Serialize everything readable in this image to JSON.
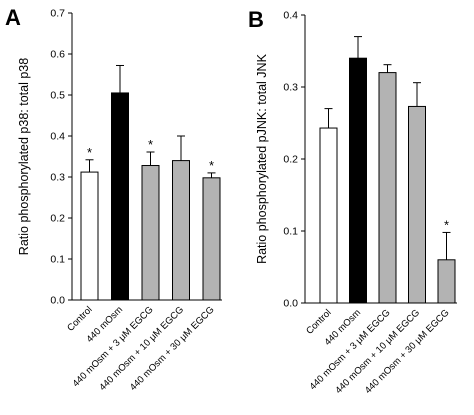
{
  "chart_data": [
    {
      "type": "bar",
      "panel_label": "A",
      "ylabel": "Ratio phosphorylated p38: total p38",
      "ylim": [
        0,
        0.7
      ],
      "yticks": [
        "0.0",
        "0.1",
        "0.2",
        "0.3",
        "0.4",
        "0.5",
        "0.6",
        "0.7"
      ],
      "categories": [
        "Control",
        "440 mOsm",
        "440 mOsm + 3 μM EGCG",
        "440 mOsm + 10 μM EGCG",
        "440 mOsm + 30 μM EGCG"
      ],
      "values": [
        0.312,
        0.505,
        0.328,
        0.34,
        0.298
      ],
      "errors": [
        0.03,
        0.067,
        0.033,
        0.06,
        0.012
      ],
      "significance": [
        "*",
        "",
        "*",
        "",
        "*"
      ],
      "bar_colors": [
        "#ffffff",
        "#000000",
        "#b3b3b3",
        "#b3b3b3",
        "#b3b3b3"
      ],
      "grid": false
    },
    {
      "type": "bar",
      "panel_label": "B",
      "ylabel": "Ratio phosphorylated pJNK: total JNK",
      "ylim": [
        0,
        0.4
      ],
      "yticks": [
        "0.0",
        "0.1",
        "0.2",
        "0.3",
        "0.4"
      ],
      "categories": [
        "Control",
        "440 mOsm",
        "440 mOsm + 3 μM EGCG",
        "440 mOsm + 10 μM EGCG",
        "440 mOsm + 30 μM EGCG"
      ],
      "values": [
        0.243,
        0.34,
        0.32,
        0.273,
        0.06
      ],
      "errors": [
        0.027,
        0.03,
        0.011,
        0.033,
        0.038
      ],
      "significance": [
        "",
        "",
        "",
        "",
        "*"
      ],
      "bar_colors": [
        "#ffffff",
        "#000000",
        "#b3b3b3",
        "#b3b3b3",
        "#b3b3b3"
      ],
      "grid": false
    }
  ]
}
